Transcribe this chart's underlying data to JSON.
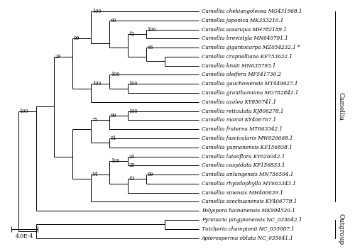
{
  "taxa": [
    "Camellia chekiangoleosa MG431968.1",
    "Camellia japonica MK353210.1",
    "Camellia sasanqua MH782189.1",
    "Camellia brevistyla MN640791.1",
    "Camellia gigantocarpa MZ054232.1 *",
    "Camellia crapnelliana KF753632.1",
    "Camellia kissii MN635793.1",
    "Camellia oleifera MF541730.2",
    "Camellia gauchowensis MT449927.1",
    "Camellia granthamiana MG782842.1",
    "Camellia azalea KY856741.1",
    "Camellia reticulata KJ806278.1",
    "Camellia mairei KY406767.1",
    "Camellia fraterna MT663342.1",
    "Camellia fascicularis MW026668.1",
    "Camellia yunnanensis KF156838.1",
    "Camellia luteoflora KY626042.1",
    "Camellia cuspidata KF156833.1",
    "Camellia anlungensis MN756594.1",
    "Camellia rhytidophylla MT663343.1",
    "Camellia sinensis MH460639.1",
    "Camellia szechuanensis KY406778.1",
    "Polyspora hainanensis MK994520.1",
    "Pyrenaria pingpienensis NC_035642.1",
    "Tutcheria championii NC_035687.1",
    "Apterosperma oblata NC_035641.1"
  ],
  "background_color": "#ffffff",
  "line_color": "#000000",
  "text_color": "#000000",
  "fontsize_taxa": 5.2,
  "fontsize_bootstrap": 4.8,
  "fontsize_scale": 5.5,
  "fontsize_group": 6.5,
  "scale_label": "4.0E-4"
}
